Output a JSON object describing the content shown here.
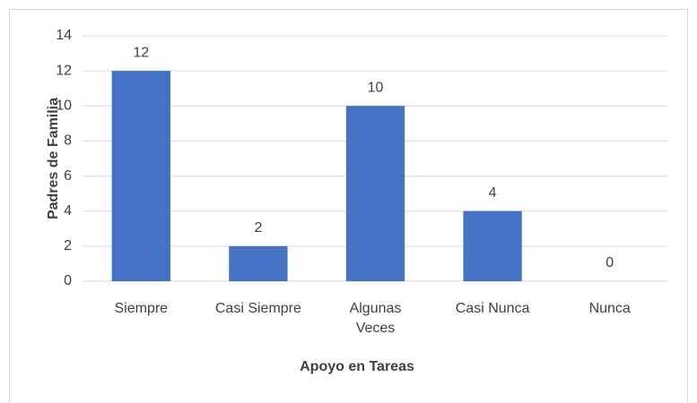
{
  "chart_data": {
    "type": "bar",
    "categories": [
      "Siempre",
      "Casi Siempre",
      "Algunas Veces",
      "Casi Nunca",
      "Nunca"
    ],
    "values": [
      12,
      2,
      10,
      4,
      0
    ],
    "color": "#4472c4",
    "xlabel": "Apoyo en Tareas",
    "ylabel": "Padres de Familia",
    "ylim": [
      0,
      14
    ],
    "yticks": [
      0,
      2,
      4,
      6,
      8,
      10,
      12,
      14
    ],
    "grid": true
  }
}
